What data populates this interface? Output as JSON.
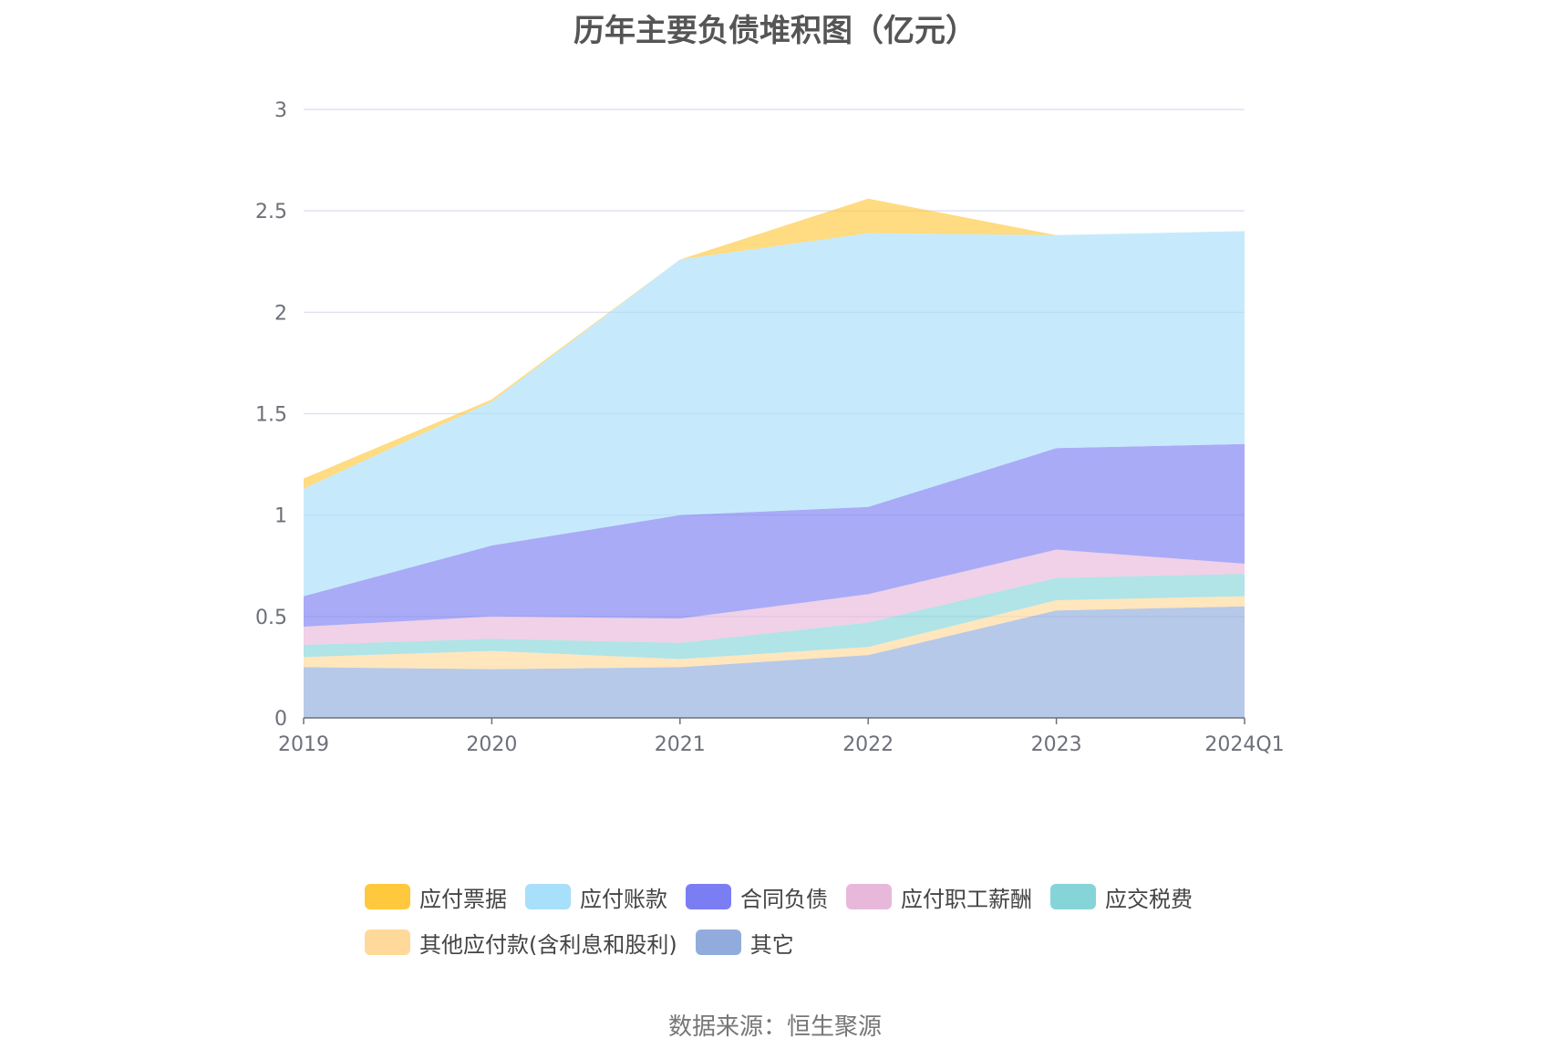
{
  "chart_data": {
    "type": "area",
    "stacked": true,
    "title": "历年主要负债堆积图（亿元）",
    "categories": [
      "2019",
      "2020",
      "2021",
      "2022",
      "2023",
      "2024Q1"
    ],
    "ylim": [
      0,
      3
    ],
    "yticks": [
      "0",
      "0.5",
      "1",
      "1.5",
      "2",
      "2.5",
      "3"
    ],
    "grid": true,
    "legend_position": "bottom",
    "series": [
      {
        "name": "其它",
        "color": "#91acdc",
        "values": [
          0.25,
          0.24,
          0.25,
          0.31,
          0.53,
          0.55
        ]
      },
      {
        "name": "其他应付款(含利息和股利)",
        "color": "#ffd999",
        "values": [
          0.05,
          0.09,
          0.04,
          0.04,
          0.05,
          0.05
        ]
      },
      {
        "name": "应交税费",
        "color": "#85d5d8",
        "values": [
          0.06,
          0.06,
          0.08,
          0.12,
          0.11,
          0.11
        ]
      },
      {
        "name": "应付职工薪酬",
        "color": "#e8b8da",
        "values": [
          0.09,
          0.11,
          0.12,
          0.14,
          0.14,
          0.05
        ]
      },
      {
        "name": "合同负债",
        "color": "#7b7ef2",
        "values": [
          0.15,
          0.35,
          0.51,
          0.43,
          0.5,
          0.59
        ]
      },
      {
        "name": "应付账款",
        "color": "#a8dffa",
        "values": [
          0.53,
          0.71,
          1.26,
          1.35,
          1.05,
          1.05
        ]
      },
      {
        "name": "应付票据",
        "color": "#ffc83d",
        "values": [
          0.05,
          0.01,
          0.0,
          0.17,
          0.0,
          0.0
        ]
      }
    ],
    "legend_order": [
      "应付票据",
      "应付账款",
      "合同负债",
      "应付职工薪酬",
      "应交税费",
      "其他应付款(含利息和股利)",
      "其它"
    ]
  },
  "source_note": "数据来源：恒生聚源"
}
